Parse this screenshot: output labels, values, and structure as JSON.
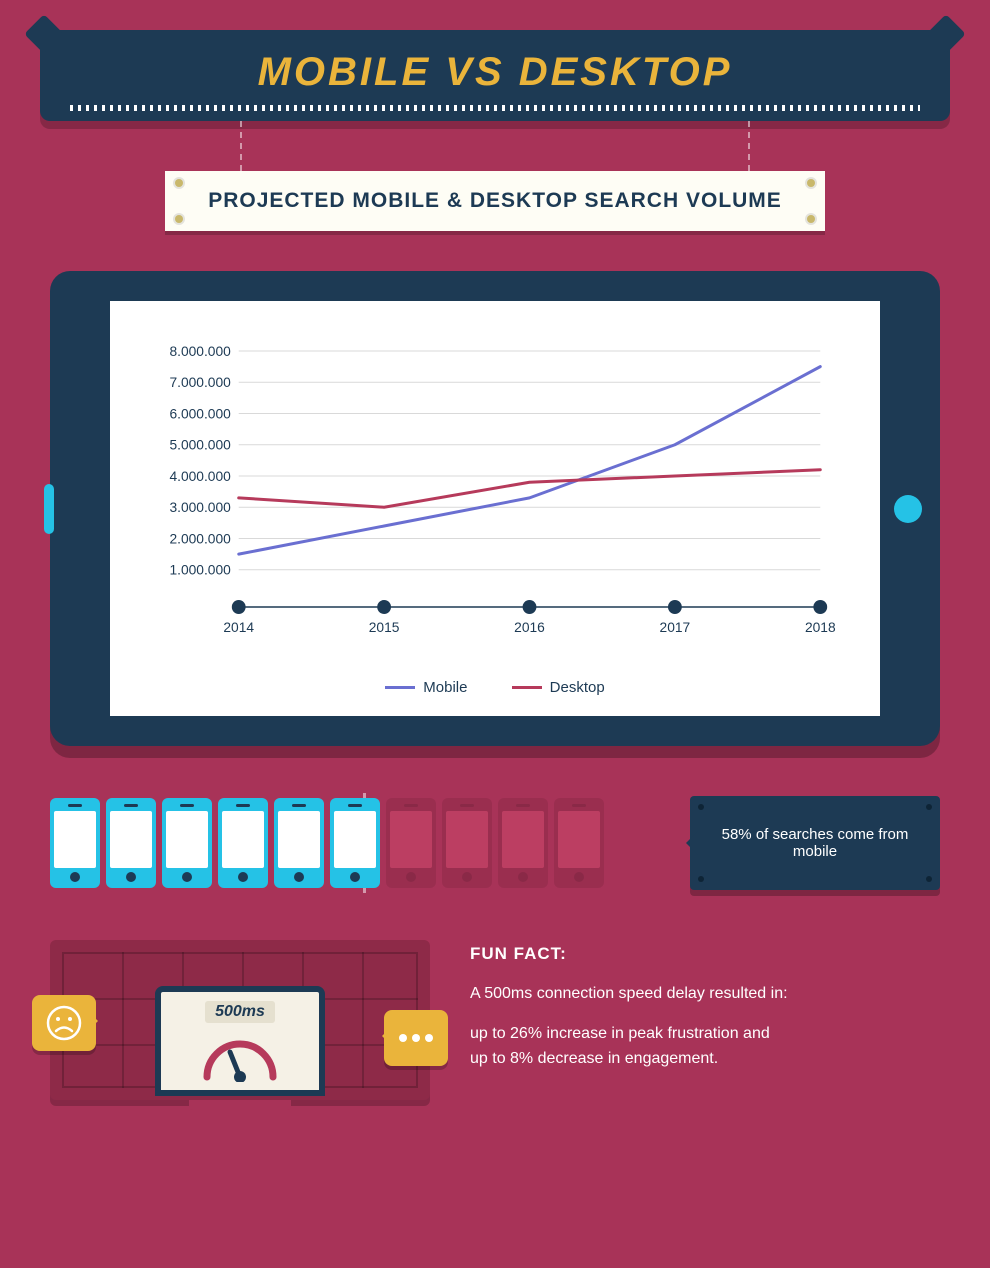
{
  "background_color": "#a83358",
  "title": {
    "text": "MOBILE VS DESKTOP",
    "color": "#eab43b",
    "banner_bg": "#1d3a54",
    "fontsize": 40
  },
  "subtitle": {
    "text": "PROJECTED MOBILE & DESKTOP SEARCH VOLUME",
    "bg": "#fefdf5",
    "color": "#1d3a54",
    "fontsize": 21
  },
  "chart": {
    "type": "line",
    "background_color": "#ffffff",
    "tablet_color": "#1d3a54",
    "accent_button_color": "#25c2e6",
    "grid_color": "#d9d9d9",
    "axis_color": "#1d3a54",
    "tick_font_color": "#1d3a54",
    "tick_fontsize": 14,
    "x_categories": [
      "2014",
      "2015",
      "2016",
      "2017",
      "2018"
    ],
    "y_ticks": [
      "1.000.000",
      "2.000.000",
      "3.000.000",
      "4.000.000",
      "5.000.000",
      "6.000.000",
      "7.000.000",
      "8.000.000"
    ],
    "ylim": [
      0,
      8000000
    ],
    "xlim": [
      2014,
      2018
    ],
    "line_width": 3,
    "x_marker_radius": 7,
    "x_marker_color": "#1d3a54",
    "series": [
      {
        "name": "Mobile",
        "color": "#6a6fd1",
        "points": [
          {
            "x": 2014,
            "y": 1500000
          },
          {
            "x": 2015,
            "y": 2400000
          },
          {
            "x": 2016,
            "y": 3300000
          },
          {
            "x": 2017,
            "y": 5000000
          },
          {
            "x": 2018,
            "y": 7500000
          }
        ]
      },
      {
        "name": "Desktop",
        "color": "#b63a5b",
        "points": [
          {
            "x": 2014,
            "y": 3300000
          },
          {
            "x": 2015,
            "y": 3000000
          },
          {
            "x": 2016,
            "y": 3800000
          },
          {
            "x": 2017,
            "y": 4000000
          },
          {
            "x": 2018,
            "y": 4200000
          }
        ]
      }
    ],
    "legend": {
      "items": [
        "Mobile",
        "Desktop"
      ],
      "colors": [
        "#6a6fd1",
        "#b63a5b"
      ],
      "fontsize": 15
    }
  },
  "phone_stat": {
    "total_icons": 10,
    "highlighted_icons": 6,
    "highlight_color": "#25c2e6",
    "dim_color": "#8e2a48",
    "callout_bg": "#1d3a54",
    "callout_text": "58% of searches come from mobile",
    "callout_fontsize": 15
  },
  "fun_fact": {
    "heading": "FUN FACT:",
    "line1": "A 500ms connection speed delay resulted in:",
    "line2": "up to 26% increase in peak frustration and",
    "line3": "up to 8% decrease in engagement.",
    "gauge_label": "500ms",
    "bubble_color": "#eab43b",
    "graphic_bg": "#8e2a48",
    "laptop_frame_color": "#1d3a54",
    "laptop_screen_bg": "#f5f1e6",
    "gauge_arc_color": "#b63a5b",
    "gauge_needle_color": "#1d3a54",
    "text_color": "#ffffff",
    "heading_fontsize": 17,
    "body_fontsize": 16
  }
}
